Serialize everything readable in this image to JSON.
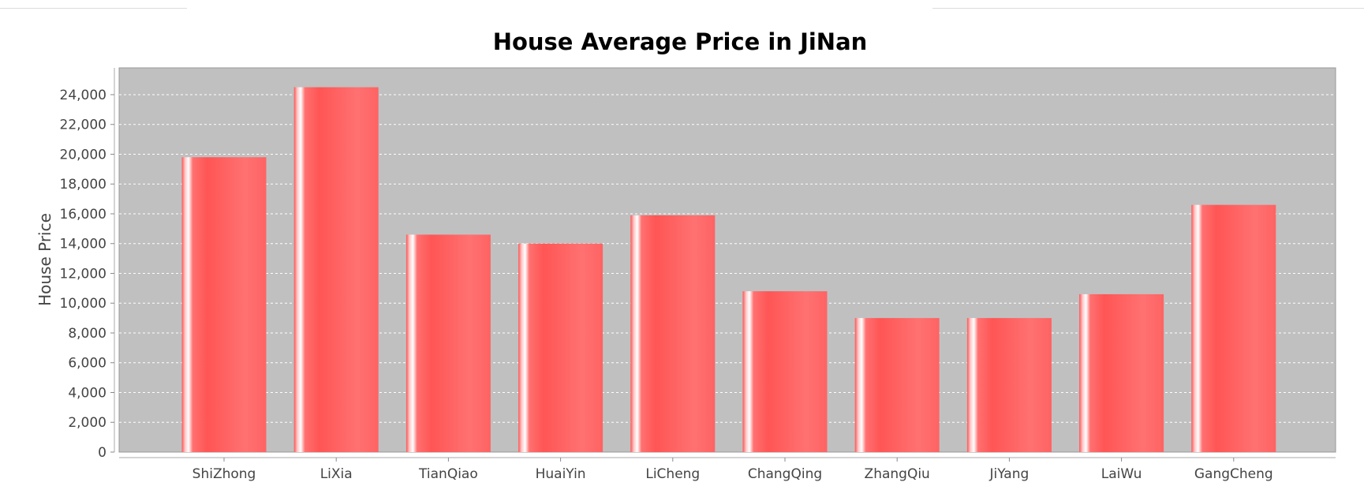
{
  "chart_data": {
    "type": "bar",
    "title": "House Average Price in JiNan",
    "xlabel": "",
    "ylabel": "House Price",
    "categories": [
      "ShiZhong",
      "LiXia",
      "TianQiao",
      "HuaiYin",
      "LiCheng",
      "ChangQing",
      "ZhangQiu",
      "JiYang",
      "LaiWu",
      "GangCheng"
    ],
    "values": [
      19800,
      24500,
      14600,
      14000,
      15900,
      10800,
      9000,
      9000,
      10600,
      16600
    ],
    "ylim": [
      0,
      25800
    ],
    "yticks": [
      0,
      2000,
      4000,
      6000,
      8000,
      10000,
      12000,
      14000,
      16000,
      18000,
      20000,
      22000,
      24000
    ],
    "ytick_labels": [
      "0",
      "2,000",
      "4,000",
      "6,000",
      "8,000",
      "10,000",
      "12,000",
      "14,000",
      "16,000",
      "18,000",
      "20,000",
      "22,000",
      "24,000"
    ],
    "grid": true,
    "colors": {
      "bar": "#ff5a5a",
      "plot_background": "#c0c0c0",
      "gridline": "#ffffff",
      "axis": "#999999"
    }
  }
}
